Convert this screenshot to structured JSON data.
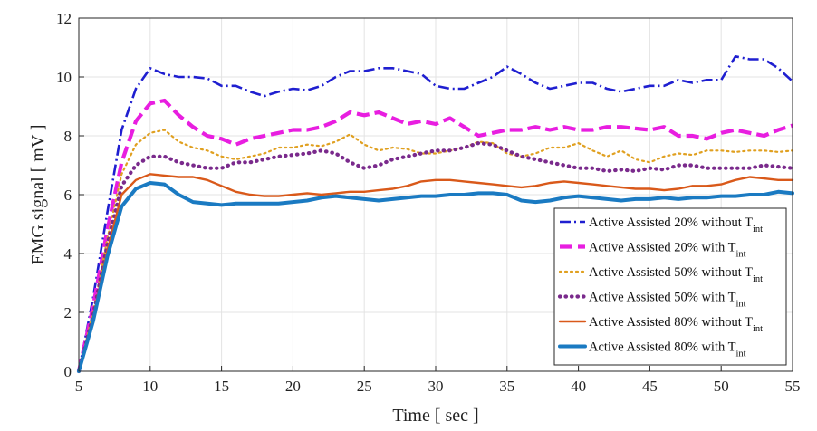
{
  "chart_data": {
    "type": "line",
    "xlabel": "Time [ sec ]",
    "ylabel": "EMG signal [ mV ]",
    "xlim": [
      5,
      55
    ],
    "ylim": [
      0,
      12
    ],
    "xticks": [
      5,
      10,
      15,
      20,
      25,
      30,
      35,
      40,
      45,
      50,
      55
    ],
    "yticks": [
      0,
      2,
      4,
      6,
      8,
      10,
      12
    ],
    "grid": true,
    "legend_position": "bottom-right",
    "series": [
      {
        "name": "Active Assisted 20% without T",
        "name_sub": "int",
        "color": "#1f1fd0",
        "style": "dashdot",
        "x": [
          5,
          6,
          7,
          8,
          9,
          10,
          11,
          12,
          13,
          14,
          15,
          16,
          17,
          18,
          19,
          20,
          21,
          22,
          23,
          24,
          25,
          26,
          27,
          28,
          29,
          30,
          31,
          32,
          33,
          34,
          35,
          36,
          37,
          38,
          39,
          40,
          41,
          42,
          43,
          44,
          45,
          46,
          47,
          48,
          49,
          50,
          51,
          52,
          53,
          54,
          55
        ],
        "y": [
          0.0,
          2.5,
          5.4,
          8.2,
          9.6,
          10.3,
          10.1,
          10.0,
          10.0,
          9.95,
          9.7,
          9.7,
          9.5,
          9.35,
          9.5,
          9.6,
          9.55,
          9.7,
          10.0,
          10.2,
          10.2,
          10.3,
          10.3,
          10.2,
          10.1,
          9.7,
          9.6,
          9.6,
          9.8,
          10.0,
          10.35,
          10.1,
          9.8,
          9.6,
          9.7,
          9.8,
          9.8,
          9.6,
          9.5,
          9.6,
          9.7,
          9.7,
          9.9,
          9.8,
          9.9,
          9.9,
          10.7,
          10.6,
          10.6,
          10.3,
          9.85
        ]
      },
      {
        "name": "Active Assisted 20% with T",
        "name_sub": "int",
        "color": "#e81ee0",
        "style": "dashed",
        "x": [
          5,
          6,
          7,
          8,
          9,
          10,
          11,
          12,
          13,
          14,
          15,
          16,
          17,
          18,
          19,
          20,
          21,
          22,
          23,
          24,
          25,
          26,
          27,
          28,
          29,
          30,
          31,
          32,
          33,
          34,
          35,
          36,
          37,
          38,
          39,
          40,
          41,
          42,
          43,
          44,
          45,
          46,
          47,
          48,
          49,
          50,
          51,
          52,
          53,
          54,
          55
        ],
        "y": [
          0.0,
          2.2,
          4.8,
          7.1,
          8.5,
          9.1,
          9.2,
          8.7,
          8.3,
          8.0,
          7.9,
          7.7,
          7.9,
          8.0,
          8.1,
          8.2,
          8.2,
          8.3,
          8.5,
          8.8,
          8.7,
          8.8,
          8.6,
          8.4,
          8.5,
          8.4,
          8.6,
          8.3,
          8.0,
          8.1,
          8.2,
          8.2,
          8.3,
          8.2,
          8.3,
          8.2,
          8.2,
          8.3,
          8.3,
          8.25,
          8.2,
          8.3,
          8.0,
          8.0,
          7.9,
          8.1,
          8.2,
          8.1,
          8.0,
          8.2,
          8.35
        ]
      },
      {
        "name": "Active Assisted 50% without T",
        "name_sub": "int",
        "color": "#e0a020",
        "style": "dotted",
        "x": [
          5,
          6,
          7,
          8,
          9,
          10,
          11,
          12,
          13,
          14,
          15,
          16,
          17,
          18,
          19,
          20,
          21,
          22,
          23,
          24,
          25,
          26,
          27,
          28,
          29,
          30,
          31,
          32,
          33,
          34,
          35,
          36,
          37,
          38,
          39,
          40,
          41,
          42,
          43,
          44,
          45,
          46,
          47,
          48,
          49,
          50,
          51,
          52,
          53,
          54,
          55
        ],
        "y": [
          0.0,
          2.0,
          4.5,
          6.7,
          7.7,
          8.1,
          8.2,
          7.8,
          7.6,
          7.5,
          7.3,
          7.2,
          7.3,
          7.4,
          7.6,
          7.6,
          7.7,
          7.65,
          7.8,
          8.05,
          7.7,
          7.5,
          7.6,
          7.55,
          7.4,
          7.4,
          7.5,
          7.6,
          7.8,
          7.75,
          7.4,
          7.3,
          7.4,
          7.6,
          7.6,
          7.75,
          7.5,
          7.3,
          7.5,
          7.2,
          7.1,
          7.3,
          7.4,
          7.35,
          7.5,
          7.5,
          7.45,
          7.5,
          7.5,
          7.45,
          7.5
        ]
      },
      {
        "name": "Active Assisted 50% with T",
        "name_sub": "int",
        "color": "#7a2a8c",
        "style": "dotted-thick",
        "x": [
          5,
          6,
          7,
          8,
          9,
          10,
          11,
          12,
          13,
          14,
          15,
          16,
          17,
          18,
          19,
          20,
          21,
          22,
          23,
          24,
          25,
          26,
          27,
          28,
          29,
          30,
          31,
          32,
          33,
          34,
          35,
          36,
          37,
          38,
          39,
          40,
          41,
          42,
          43,
          44,
          45,
          46,
          47,
          48,
          49,
          50,
          51,
          52,
          53,
          54,
          55
        ],
        "y": [
          0.0,
          1.9,
          4.3,
          6.3,
          7.0,
          7.3,
          7.3,
          7.1,
          7.0,
          6.9,
          6.9,
          7.1,
          7.1,
          7.2,
          7.3,
          7.35,
          7.4,
          7.5,
          7.4,
          7.1,
          6.9,
          7.0,
          7.2,
          7.3,
          7.4,
          7.5,
          7.5,
          7.6,
          7.75,
          7.7,
          7.5,
          7.3,
          7.2,
          7.1,
          7.0,
          6.9,
          6.9,
          6.8,
          6.85,
          6.8,
          6.9,
          6.85,
          7.0,
          7.0,
          6.9,
          6.9,
          6.9,
          6.9,
          7.0,
          6.95,
          6.9
        ]
      },
      {
        "name": "Active Assisted 80% without T",
        "name_sub": "int",
        "color": "#d9591a",
        "style": "solid",
        "x": [
          5,
          6,
          7,
          8,
          9,
          10,
          11,
          12,
          13,
          14,
          15,
          16,
          17,
          18,
          19,
          20,
          21,
          22,
          23,
          24,
          25,
          26,
          27,
          28,
          29,
          30,
          31,
          32,
          33,
          34,
          35,
          36,
          37,
          38,
          39,
          40,
          41,
          42,
          43,
          44,
          45,
          46,
          47,
          48,
          49,
          50,
          51,
          52,
          53,
          54,
          55
        ],
        "y": [
          0.0,
          1.8,
          4.1,
          6.0,
          6.5,
          6.7,
          6.65,
          6.6,
          6.6,
          6.5,
          6.3,
          6.1,
          6.0,
          5.95,
          5.95,
          6.0,
          6.05,
          6.0,
          6.05,
          6.1,
          6.1,
          6.15,
          6.2,
          6.3,
          6.45,
          6.5,
          6.5,
          6.45,
          6.4,
          6.35,
          6.3,
          6.25,
          6.3,
          6.4,
          6.45,
          6.4,
          6.35,
          6.3,
          6.25,
          6.2,
          6.2,
          6.15,
          6.2,
          6.3,
          6.3,
          6.35,
          6.5,
          6.6,
          6.55,
          6.5,
          6.5
        ]
      },
      {
        "name": "Active Assisted 80% with T",
        "name_sub": "int",
        "color": "#1a7ac2",
        "style": "solid-thick",
        "x": [
          5,
          6,
          7,
          8,
          9,
          10,
          11,
          12,
          13,
          14,
          15,
          16,
          17,
          18,
          19,
          20,
          21,
          22,
          23,
          24,
          25,
          26,
          27,
          28,
          29,
          30,
          31,
          32,
          33,
          34,
          35,
          36,
          37,
          38,
          39,
          40,
          41,
          42,
          43,
          44,
          45,
          46,
          47,
          48,
          49,
          50,
          51,
          52,
          53,
          54,
          55
        ],
        "y": [
          0.0,
          1.7,
          3.9,
          5.6,
          6.2,
          6.4,
          6.35,
          6.0,
          5.75,
          5.7,
          5.65,
          5.7,
          5.7,
          5.7,
          5.7,
          5.75,
          5.8,
          5.9,
          5.95,
          5.9,
          5.85,
          5.8,
          5.85,
          5.9,
          5.95,
          5.95,
          6.0,
          6.0,
          6.05,
          6.05,
          6.0,
          5.8,
          5.75,
          5.8,
          5.9,
          5.95,
          5.9,
          5.85,
          5.8,
          5.85,
          5.85,
          5.9,
          5.85,
          5.9,
          5.9,
          5.95,
          5.95,
          6.0,
          6.0,
          6.1,
          6.05
        ]
      }
    ]
  }
}
